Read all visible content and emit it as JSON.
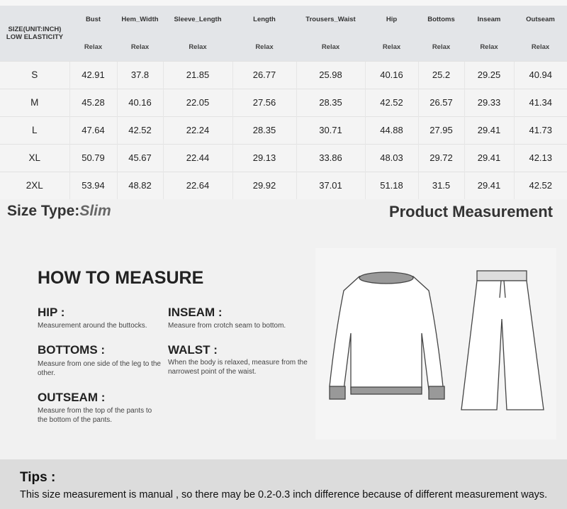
{
  "table": {
    "size_header": [
      "SIZE(UNIT:INCH)",
      "LOW ELASTICITY"
    ],
    "columns": [
      "Bust",
      "Hem_Width",
      "Sleeve_Length",
      "Length",
      "Trousers_Waist",
      "Hip",
      "Bottoms",
      "Inseam",
      "Outseam"
    ],
    "subheader": "Relax",
    "rows": [
      [
        "S",
        "42.91",
        "37.8",
        "21.85",
        "26.77",
        "25.98",
        "40.16",
        "25.2",
        "29.25",
        "40.94"
      ],
      [
        "M",
        "45.28",
        "40.16",
        "22.05",
        "27.56",
        "28.35",
        "42.52",
        "26.57",
        "29.33",
        "41.34"
      ],
      [
        "L",
        "47.64",
        "42.52",
        "22.24",
        "28.35",
        "30.71",
        "44.88",
        "27.95",
        "29.41",
        "41.73"
      ],
      [
        "XL",
        "50.79",
        "45.67",
        "22.44",
        "29.13",
        "33.86",
        "48.03",
        "29.72",
        "29.41",
        "42.13"
      ],
      [
        "2XL",
        "53.94",
        "48.82",
        "22.64",
        "29.92",
        "37.01",
        "51.18",
        "31.5",
        "29.41",
        "42.52"
      ]
    ]
  },
  "size_type": {
    "label": "Size Type:",
    "value": "Slim"
  },
  "product_measurement": "Product Measurement",
  "how_to": {
    "title": "HOW TO MEASURE",
    "items": [
      {
        "term": "HIP :",
        "desc": "Measurement around the buttocks."
      },
      {
        "term": "INSEAM :",
        "desc": "Measure from crotch seam to bottom."
      },
      {
        "term": "BOTTOMS :",
        "desc": "Measure from one side of the leg to the other."
      },
      {
        "term": "WALST :",
        "desc": "When the body is relaxed, measure from the narrowest point of the waist."
      },
      {
        "term": "OUTSEAM :",
        "desc": "Measure from the top of the pants to the bottom of the pants."
      }
    ]
  },
  "tips": {
    "title": "Tips :",
    "text": "This size measurement is manual , so there may be 0.2-0.3 inch difference because of different measurement ways."
  }
}
